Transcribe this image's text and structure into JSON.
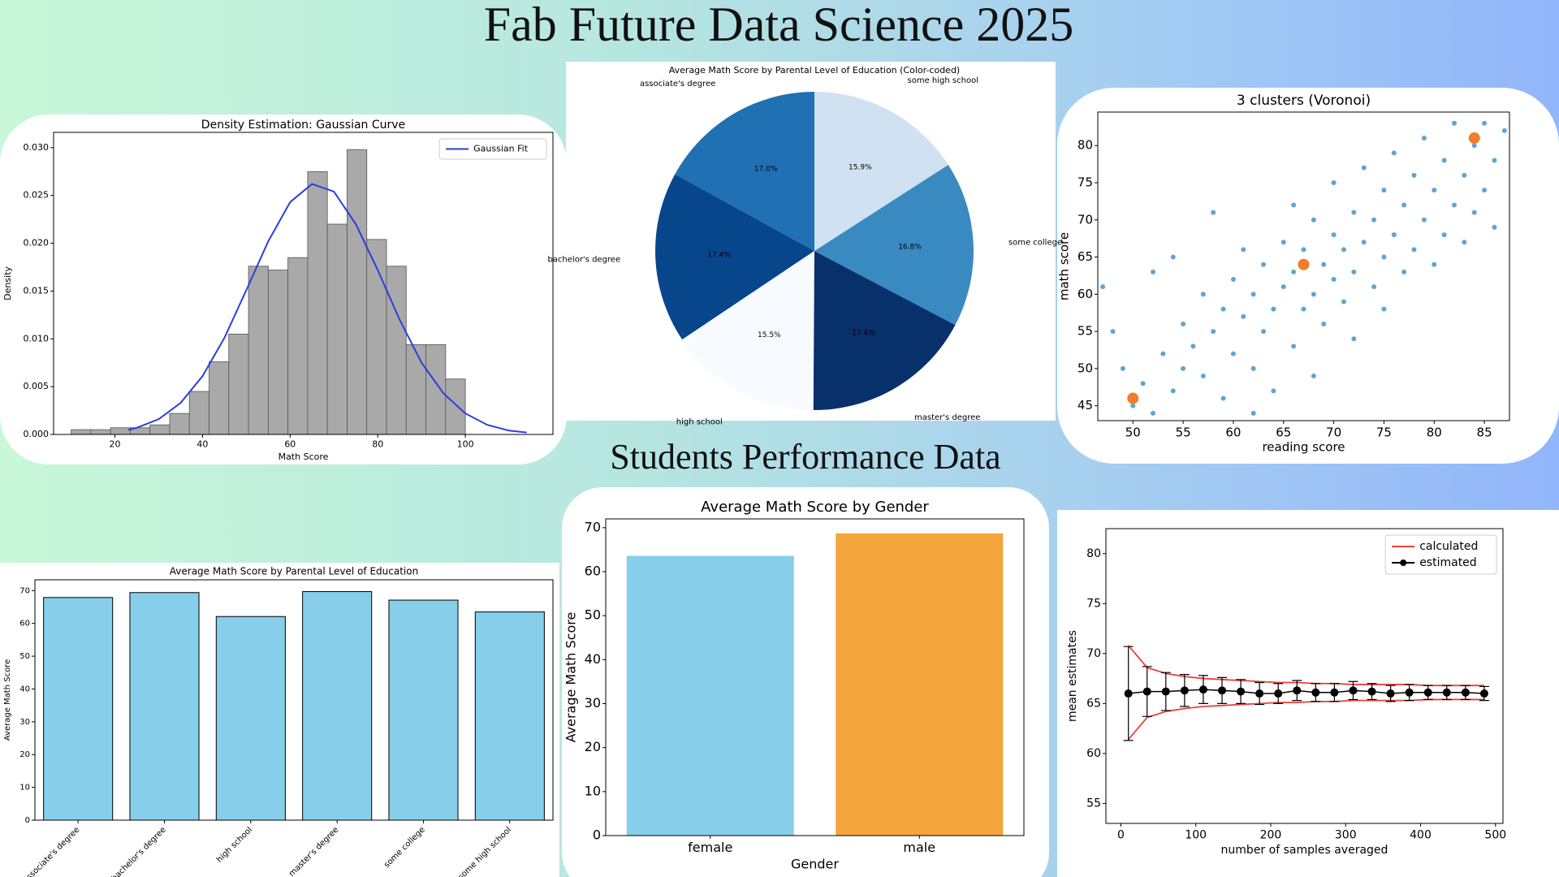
{
  "header": {
    "title": "Fab Future Data Science 2025",
    "subtitle": "Students Performance Data"
  },
  "chart_data": [
    {
      "type": "histogram",
      "title": "Density Estimation: Gaussian Curve",
      "x_label": "Math Score",
      "y_label": "Density",
      "bins": [
        10,
        14.5,
        19,
        23.5,
        28,
        32.5,
        37,
        41.5,
        46,
        50.5,
        55,
        59.5,
        64,
        68.5,
        73,
        77.5,
        82,
        86.5,
        91,
        95.5,
        100
      ],
      "values": [
        0.0005,
        0.0005,
        0.0007,
        0.0007,
        0.001,
        0.0022,
        0.0045,
        0.0076,
        0.0105,
        0.0176,
        0.0172,
        0.0185,
        0.0275,
        0.022,
        0.0298,
        0.0204,
        0.0176,
        0.0094,
        0.0094,
        0.0058
      ],
      "color": "#a9a9a9",
      "xlim": [
        6,
        120
      ],
      "ylim": [
        0,
        0.0316
      ],
      "xticks": [
        20,
        40,
        60,
        80,
        100
      ],
      "yticks": [
        {
          "value": 0,
          "label": "0.000"
        },
        0.005,
        {
          "value": 0.01,
          "label": "0.010"
        },
        0.015,
        {
          "value": 0.02,
          "label": "0.020"
        },
        0.025,
        {
          "value": 0.03,
          "label": "0.030"
        }
      ],
      "series": [
        {
          "name": "Gaussian Fit",
          "color": "#2a3fdc",
          "x": [
            23,
            25,
            30,
            35,
            40,
            45,
            50,
            55,
            60,
            65,
            70,
            75,
            80,
            85,
            90,
            95,
            100,
            105,
            110,
            114
          ],
          "values": [
            0.00048,
            0.0007,
            0.0016,
            0.0033,
            0.0061,
            0.0101,
            0.0151,
            0.0202,
            0.0243,
            0.0262,
            0.0254,
            0.022,
            0.0172,
            0.012,
            0.0075,
            0.0043,
            0.0022,
            0.001,
            0.0004,
            0.0002
          ]
        }
      ],
      "legend": "upper right"
    },
    {
      "type": "pie",
      "title": "Average Math Score by Parental Level of Education (Color-coded)",
      "categories": [
        "associate's degree",
        "bachelor's degree",
        "high school",
        "master's degree",
        "some college",
        "some high school"
      ],
      "values": [
        17.0,
        17.4,
        15.5,
        17.4,
        16.8,
        15.9
      ],
      "value_labels": [
        "17.0%",
        "17.4%",
        "15.5%",
        "17.4%",
        "16.8%",
        "15.9%"
      ],
      "colors": [
        "#2070b4",
        "#08468c",
        "#f7fbff",
        "#08306b",
        "#3a8ac2",
        "#d0e1f2"
      ],
      "start_angle": 90,
      "direction": "counterclockwise"
    },
    {
      "type": "scatter",
      "title": "3 clusters (Voronoi)",
      "x_label": "reading score",
      "y_label": "math score",
      "xlim": [
        46.5,
        87.5
      ],
      "ylim": [
        43,
        84.5
      ],
      "xticks": [
        50,
        55,
        60,
        65,
        70,
        75,
        80,
        85
      ],
      "yticks": [
        45,
        50,
        55,
        60,
        65,
        70,
        75,
        80
      ],
      "series": [
        {
          "color": "#3a8dc4",
          "marker_size": 3,
          "x": [
            50,
            48,
            49,
            51,
            52,
            53,
            54,
            55,
            55,
            56,
            57,
            57,
            58,
            59,
            59,
            60,
            60,
            61,
            61,
            62,
            62,
            63,
            63,
            64,
            64,
            65,
            65,
            66,
            66,
            66,
            67,
            67,
            68,
            68,
            68,
            69,
            69,
            70,
            70,
            70,
            71,
            71,
            72,
            72,
            72,
            73,
            73,
            74,
            74,
            75,
            75,
            75,
            76,
            76,
            77,
            77,
            78,
            78,
            79,
            79,
            80,
            80,
            81,
            81,
            82,
            82,
            83,
            83,
            84,
            84,
            85,
            85,
            86,
            86,
            87,
            47,
            52,
            58,
            62,
            54
          ],
          "values": [
            45,
            55,
            50,
            48,
            44,
            52,
            47,
            50,
            56,
            53,
            49,
            60,
            55,
            46,
            58,
            52,
            62,
            57,
            66,
            50,
            60,
            55,
            64,
            47,
            58,
            61,
            67,
            53,
            63,
            72,
            58,
            66,
            60,
            70,
            49,
            56,
            64,
            62,
            68,
            75,
            59,
            66,
            63,
            71,
            54,
            67,
            77,
            61,
            70,
            65,
            74,
            58,
            68,
            79,
            63,
            72,
            66,
            76,
            70,
            81,
            64,
            74,
            68,
            78,
            72,
            83,
            67,
            76,
            80,
            71,
            74,
            83,
            69,
            78,
            82,
            61,
            63,
            71,
            44,
            65
          ]
        },
        {
          "color": "#f07c2c",
          "marker_size": 7,
          "x": [
            50,
            67,
            84
          ],
          "values": [
            46,
            64,
            81
          ]
        }
      ]
    },
    {
      "type": "bar",
      "title": "Average Math Score by Parental Level of Education",
      "y_label": "Average Math Score",
      "categories": [
        "associate's degree",
        "bachelor's degree",
        "high school",
        "master's degree",
        "some college",
        "some high school"
      ],
      "values": [
        67.9,
        69.4,
        62.1,
        69.7,
        67.1,
        63.5
      ],
      "color": "#87ceeb",
      "edgecolor": "#000000",
      "ylim": [
        0,
        73.3
      ],
      "yticks": [
        0,
        10,
        20,
        30,
        40,
        50,
        60,
        70
      ],
      "label_rotation": -45
    },
    {
      "type": "bar",
      "title": "Average Math Score by Gender",
      "x_label": "Gender",
      "y_label": "Average Math Score",
      "categories": [
        "female",
        "male"
      ],
      "values": [
        63.6,
        68.7
      ],
      "colors": [
        "#87ceeb",
        "#f4a53c"
      ],
      "ylim": [
        0,
        72
      ],
      "yticks": [
        0,
        10,
        20,
        30,
        40,
        50,
        60,
        70
      ]
    },
    {
      "type": "errorbar",
      "x_label": "number of samples averaged",
      "y_label": "mean estimates",
      "xlim": [
        -20,
        510
      ],
      "ylim": [
        53,
        82.5
      ],
      "xticks": [
        0,
        100,
        200,
        300,
        400,
        500
      ],
      "yticks": [
        55,
        60,
        65,
        70,
        75,
        80
      ],
      "x": [
        10,
        35,
        60,
        85,
        110,
        135,
        160,
        185,
        210,
        235,
        260,
        285,
        310,
        335,
        360,
        385,
        410,
        435,
        460,
        485
      ],
      "series": [
        {
          "name": "calculated",
          "color": "#e8413c",
          "upper": [
            70.8,
            68.6,
            68.0,
            67.7,
            67.5,
            67.4,
            67.3,
            67.2,
            67.1,
            67.1,
            67.0,
            67.0,
            66.9,
            66.9,
            66.9,
            66.9,
            66.8,
            66.8,
            66.8,
            66.8
          ],
          "lower": [
            61.4,
            63.6,
            64.2,
            64.5,
            64.7,
            64.8,
            64.9,
            65.0,
            65.1,
            65.1,
            65.2,
            65.2,
            65.3,
            65.3,
            65.3,
            65.3,
            65.4,
            65.4,
            65.4,
            65.4
          ]
        },
        {
          "name": "estimated",
          "color": "#000000",
          "values": [
            66.0,
            66.2,
            66.2,
            66.3,
            66.4,
            66.3,
            66.2,
            66.0,
            66.0,
            66.3,
            66.1,
            66.1,
            66.3,
            66.2,
            66.0,
            66.1,
            66.1,
            66.1,
            66.1,
            66.0
          ],
          "errors": [
            4.7,
            2.5,
            1.9,
            1.6,
            1.4,
            1.3,
            1.2,
            1.1,
            1.0,
            1.0,
            0.9,
            0.9,
            0.9,
            0.8,
            0.8,
            0.8,
            0.7,
            0.7,
            0.7,
            0.7
          ]
        }
      ],
      "legend": "upper right"
    }
  ]
}
